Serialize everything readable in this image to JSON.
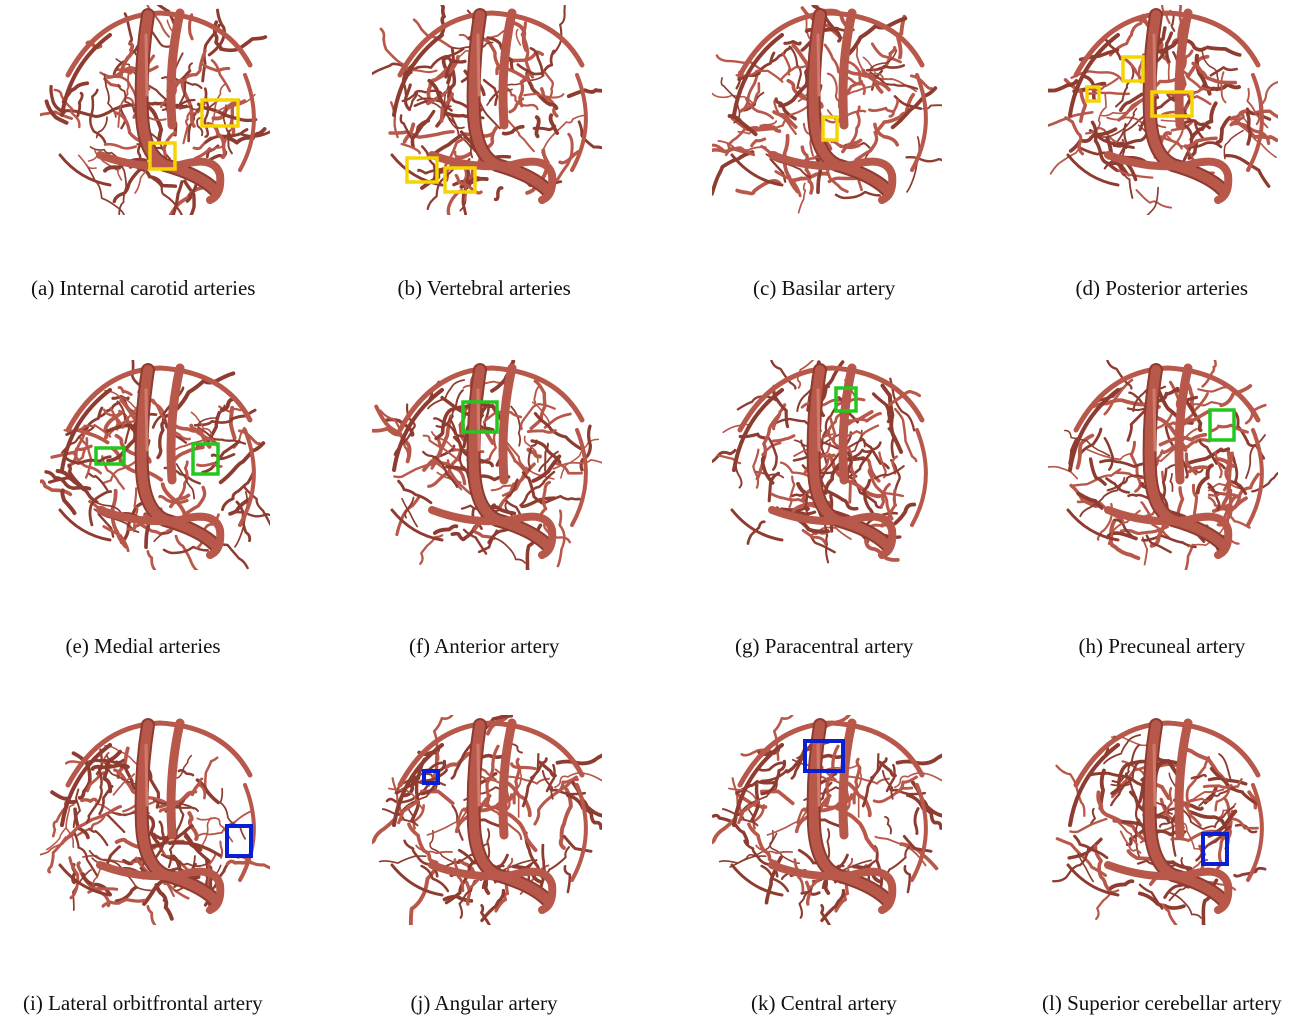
{
  "colors": {
    "vessel": "#b8584a",
    "vessel_dark": "#8e3b30",
    "vessel_light": "#cf7a6b",
    "yellow": "#f5d400",
    "green": "#22c81e",
    "blue": "#0a1ed2"
  },
  "panels": [
    {
      "id": "a",
      "caption": "(a) Internal carotid arteries",
      "box_color": "yellow"
    },
    {
      "id": "b",
      "caption": "(b) Vertebral arteries",
      "box_color": "yellow"
    },
    {
      "id": "c",
      "caption": "(c) Basilar artery",
      "box_color": "yellow"
    },
    {
      "id": "d",
      "caption": "(d) Posterior arteries",
      "box_color": "yellow"
    },
    {
      "id": "e",
      "caption": "(e) Medial arteries",
      "box_color": "green"
    },
    {
      "id": "f",
      "caption": "(f) Anterior artery",
      "box_color": "green"
    },
    {
      "id": "g",
      "caption": "(g) Paracentral artery",
      "box_color": "green"
    },
    {
      "id": "h",
      "caption": "(h) Precuneal artery",
      "box_color": "green"
    },
    {
      "id": "i",
      "caption": "(i) Lateral orbitfrontal artery",
      "box_color": "blue"
    },
    {
      "id": "j",
      "caption": "(j) Angular artery",
      "box_color": "blue"
    },
    {
      "id": "k",
      "caption": "(k) Central artery",
      "box_color": "blue"
    },
    {
      "id": "l",
      "caption": "(l) Superior cerebellar artery",
      "box_color": "blue"
    }
  ]
}
